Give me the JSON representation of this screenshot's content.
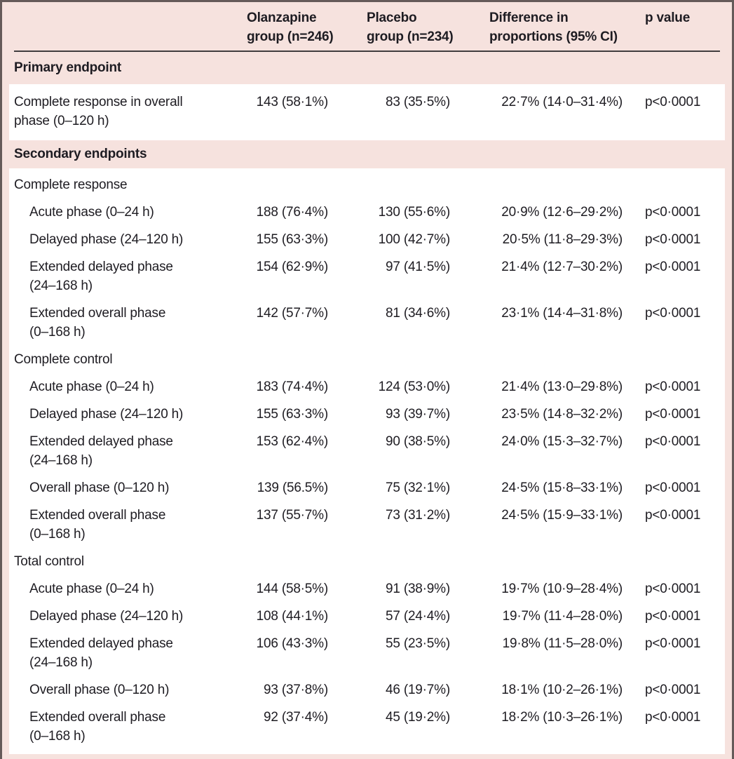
{
  "header": {
    "olanzapine": "Olanzapine\ngroup (n=246)",
    "placebo": "Placebo\ngroup (n=234)",
    "difference": "Difference in\nproportions (95% CI)",
    "p": "p value"
  },
  "primary": {
    "band": "Primary endpoint",
    "row": {
      "label": "Complete response in overall\nphase (0–120 h)",
      "olanzapine": "143 (58·1%)",
      "placebo": "83 (35·5%)",
      "difference": "22·7% (14·0–31·4%)",
      "p": "p<0·0001"
    }
  },
  "secondary": {
    "band": "Secondary endpoints",
    "groups": [
      {
        "title": "Complete response",
        "rows": [
          {
            "label": "Acute phase (0–24 h)",
            "olanzapine": "188 (76·4%)",
            "placebo": "130 (55·6%)",
            "difference": "20·9% (12·6–29·2%)",
            "p": "p<0·0001"
          },
          {
            "label": "Delayed phase (24–120 h)",
            "olanzapine": "155 (63·3%)",
            "placebo": "100 (42·7%)",
            "difference": "20·5% (11·8–29·3%)",
            "p": "p<0·0001"
          },
          {
            "label": "Extended delayed phase\n(24–168 h)",
            "olanzapine": "154 (62·9%)",
            "placebo": "97 (41·5%)",
            "difference": "21·4% (12·7–30·2%)",
            "p": "p<0·0001"
          },
          {
            "label": "Extended overall phase\n(0–168 h)",
            "olanzapine": "142 (57·7%)",
            "placebo": "81 (34·6%)",
            "difference": "23·1% (14·4–31·8%)",
            "p": "p<0·0001"
          }
        ]
      },
      {
        "title": "Complete control",
        "rows": [
          {
            "label": "Acute phase (0–24 h)",
            "olanzapine": "183 (74·4%)",
            "placebo": "124 (53·0%)",
            "difference": "21·4% (13·0–29·8%)",
            "p": "p<0·0001"
          },
          {
            "label": "Delayed phase (24–120 h)",
            "olanzapine": "155 (63·3%)",
            "placebo": "93 (39·7%)",
            "difference": "23·5% (14·8–32·2%)",
            "p": "p<0·0001"
          },
          {
            "label": "Extended delayed phase\n(24–168 h)",
            "olanzapine": "153 (62·4%)",
            "placebo": "90 (38·5%)",
            "difference": "24·0% (15·3–32·7%)",
            "p": "p<0·0001"
          },
          {
            "label": "Overall phase (0–120 h)",
            "olanzapine": "139 (56.5%)",
            "placebo": "75 (32·1%)",
            "difference": "24·5% (15·8–33·1%)",
            "p": "p<0·0001"
          },
          {
            "label": "Extended overall phase\n(0–168 h)",
            "olanzapine": "137 (55·7%)",
            "placebo": "73 (31·2%)",
            "difference": "24·5% (15·9–33·1%)",
            "p": "p<0·0001"
          }
        ]
      },
      {
        "title": "Total control",
        "rows": [
          {
            "label": "Acute phase (0–24 h)",
            "olanzapine": "144 (58·5%)",
            "placebo": "91 (38·9%)",
            "difference": "19·7% (10·9–28·4%)",
            "p": "p<0·0001"
          },
          {
            "label": "Delayed phase (24–120 h)",
            "olanzapine": "108 (44·1%)",
            "placebo": "57 (24·4%)",
            "difference": "19·7% (11·4–28·0%)",
            "p": "p<0·0001"
          },
          {
            "label": "Extended delayed phase\n(24–168 h)",
            "olanzapine": "106 (43·3%)",
            "placebo": "55 (23·5%)",
            "difference": "19·8% (11·5–28·0%)",
            "p": "p<0·0001"
          },
          {
            "label": "Overall phase (0–120 h)",
            "olanzapine": "93 (37·8%)",
            "placebo": "46 (19·7%)",
            "difference": "18·1% (10·2–26·1%)",
            "p": "p<0·0001"
          },
          {
            "label": "Extended overall phase\n(0–168 h)",
            "olanzapine": "92 (37·4%)",
            "placebo": "45 (19·2%)",
            "difference": "18·2% (10·3–26·1%)",
            "p": "p<0·0001"
          }
        ]
      }
    ]
  },
  "colors": {
    "pink": "#f6e2de",
    "border": "#655a59",
    "rule": "#413c3e",
    "text": "#1e1c22",
    "row_background": "#ffffff"
  }
}
